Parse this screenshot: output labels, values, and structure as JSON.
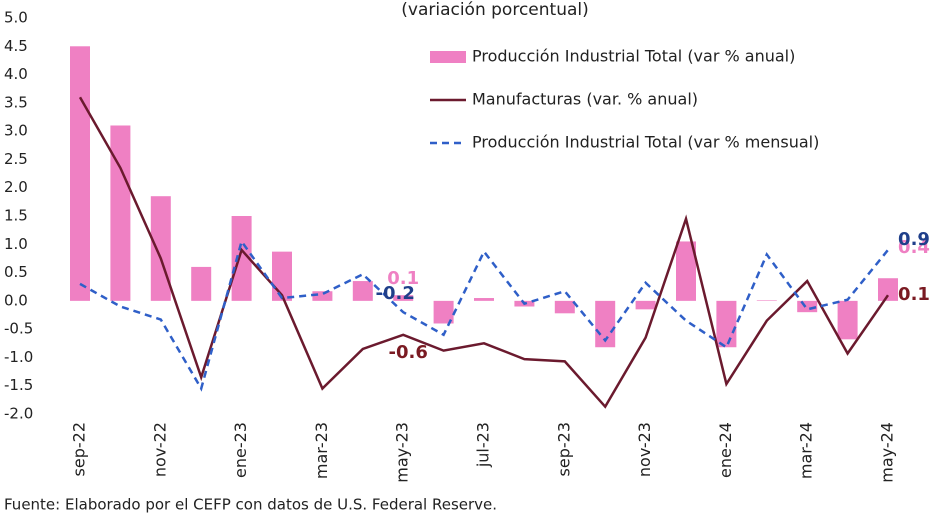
{
  "chart_data": {
    "type": "bar_line",
    "subtitle": "(variación porcentual)",
    "categories": [
      "sep-22",
      null,
      "nov-22",
      null,
      "ene-23",
      null,
      "mar-23",
      null,
      "may-23",
      null,
      "jul-23",
      null,
      "sep-23",
      null,
      "nov-23",
      null,
      "ene-24",
      null,
      "mar-24",
      null,
      "may-24"
    ],
    "series": [
      {
        "name": "Producción Industrial Total (var % anual)",
        "type": "bar",
        "color": "#ef80c3",
        "values": [
          4.5,
          3.1,
          1.85,
          0.6,
          1.5,
          0.87,
          0.17,
          0.35,
          0.1,
          -0.4,
          0.05,
          -0.1,
          -0.22,
          -0.82,
          -0.15,
          1.05,
          -0.82,
          0.01,
          -0.2,
          -0.68,
          0.4
        ],
        "labeled": [
          8,
          20
        ],
        "label_color": "#ef80c3"
      },
      {
        "name": "Manufacturas (var. % anual)",
        "type": "line",
        "color": "#6b1a2e",
        "values": [
          3.6,
          2.35,
          0.75,
          -1.35,
          0.9,
          0.1,
          -1.55,
          -0.85,
          -0.6,
          -0.88,
          -0.75,
          -1.03,
          -1.07,
          -1.87,
          -0.65,
          1.45,
          -1.47,
          -0.35,
          0.35,
          -0.93,
          0.1
        ],
        "labeled": [
          8,
          20
        ],
        "label_color": "#7a1a22"
      },
      {
        "name": "Producción Industrial Total (var % mensual)",
        "type": "line",
        "dashed": true,
        "color": "#2f5fc8",
        "values": [
          0.3,
          -0.1,
          -0.33,
          -1.55,
          1.05,
          0.05,
          0.12,
          0.47,
          -0.2,
          -0.6,
          0.87,
          -0.05,
          0.17,
          -0.7,
          0.32,
          -0.35,
          -0.82,
          0.82,
          -0.15,
          0.02,
          0.9
        ],
        "labeled": [
          8,
          20
        ],
        "label_color": "#1f3f8a"
      }
    ],
    "ylim": [
      -2.0,
      5.0
    ],
    "yticks": [
      {
        "value": 5,
        "label": "5.0"
      },
      4.5,
      {
        "value": 4,
        "label": "4.0"
      },
      3.5,
      {
        "value": 3,
        "label": "3.0"
      },
      2.5,
      {
        "value": 2,
        "label": "2.0"
      },
      1.5,
      {
        "value": 1,
        "label": "1.0"
      },
      0.5,
      {
        "value": 0,
        "label": "0.0"
      },
      -0.5,
      {
        "value": -1,
        "label": "-1.0"
      },
      -1.5,
      {
        "value": -2,
        "label": "-2.0"
      }
    ],
    "grid": false,
    "source": "Fuente: Elaborado por el CEFP con datos de U.S. Federal Reserve."
  }
}
